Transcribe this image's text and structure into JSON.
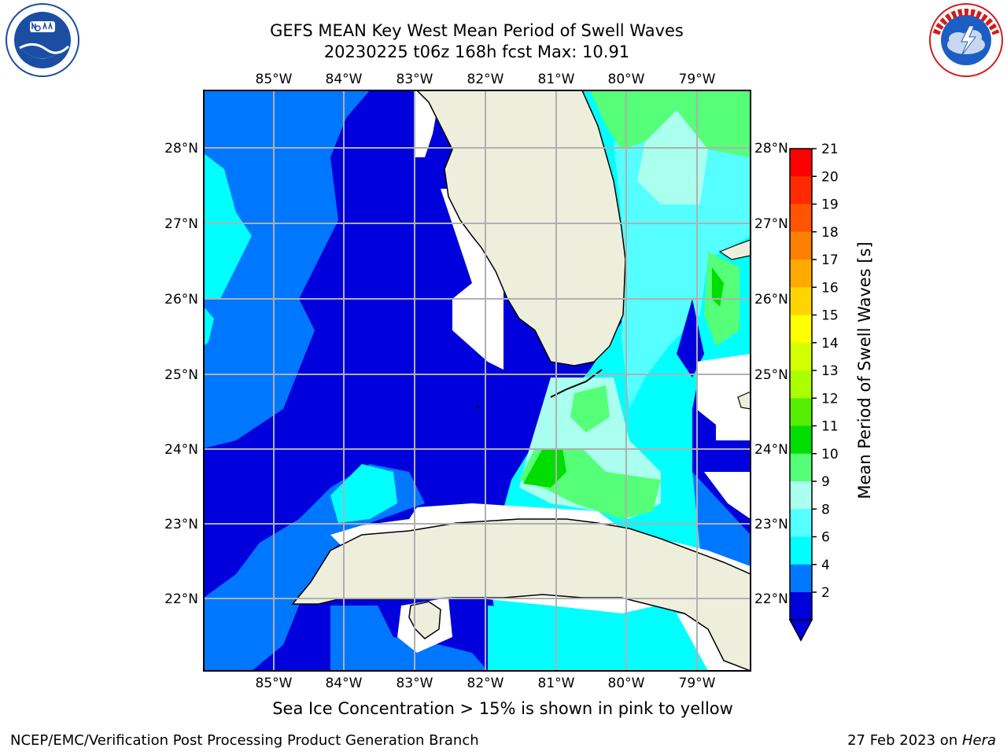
{
  "title": {
    "line1": "GEFS MEAN Key West Mean Period of Swell Waves",
    "line2": "20230225 t06z 168h fcst   Max: 10.91"
  },
  "logos": {
    "left": "noaa-logo",
    "right": "nws-logo"
  },
  "map": {
    "lon_labels": [
      "85°W",
      "84°W",
      "83°W",
      "82°W",
      "81°W",
      "80°W",
      "79°W"
    ],
    "lat_labels": [
      "28°N",
      "27°N",
      "26°N",
      "25°N",
      "24°N",
      "23°N",
      "22°N"
    ]
  },
  "colorbar": {
    "label": "Mean Period of Swell Waves [s]",
    "ticks": [
      "21",
      "20",
      "19",
      "18",
      "17",
      "16",
      "15",
      "14",
      "13",
      "12",
      "11",
      "10",
      "9",
      "8",
      "6",
      "4",
      "2"
    ],
    "colors": [
      "#ff0000",
      "#ff2a00",
      "#ff5500",
      "#ff7f00",
      "#ffaa00",
      "#ffd400",
      "#ffff00",
      "#d4ff00",
      "#aaff00",
      "#55ee00",
      "#00dd00",
      "#55ff77",
      "#aaffee",
      "#55ffff",
      "#00ffff",
      "#0077ff",
      "#0000dd"
    ]
  },
  "caption": "Sea Ice Concentration > 15% is shown in pink to yellow",
  "footer": {
    "left": "NCEP/EMC/Verification Post Processing Product Generation Branch",
    "date": "27 Feb 2023 on ",
    "host": "Hera"
  }
}
